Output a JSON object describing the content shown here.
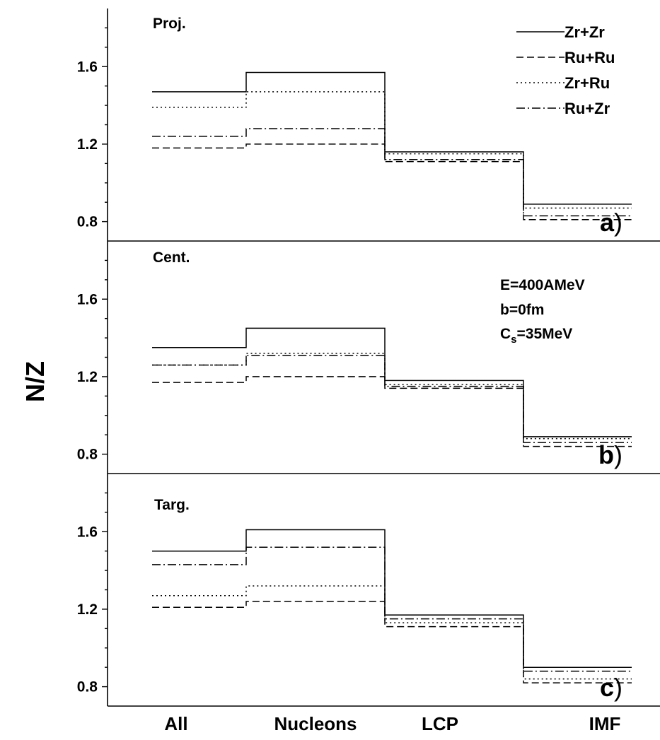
{
  "figure": {
    "ylabel": "N/Z",
    "categories": [
      "All",
      "Nucleons",
      "LCP",
      "IMF"
    ],
    "legend": [
      "Zr+Zr",
      "Ru+Ru",
      "Zr+Ru",
      "Ru+Zr"
    ],
    "annotation": {
      "line1": "E=400AMeV",
      "line2": "b=0fm",
      "line3_main": "C",
      "line3_sub": "s",
      "line3_rest": "=35MeV"
    }
  },
  "chart_data": [
    {
      "type": "line",
      "panel": "a",
      "title": "Proj.",
      "panel_label": "a",
      "categories": [
        "All",
        "Nucleons",
        "LCP",
        "IMF"
      ],
      "ylabel": "N/Z",
      "yticks": [
        0.8,
        1.2,
        1.6
      ],
      "ylim": [
        0.7,
        1.9
      ],
      "legend_position": "top-right",
      "series": [
        {
          "name": "Zr+Zr",
          "style": "solid",
          "values": [
            1.47,
            1.57,
            1.16,
            0.89
          ]
        },
        {
          "name": "Ru+Ru",
          "style": "dashed",
          "values": [
            1.18,
            1.2,
            1.11,
            0.81
          ]
        },
        {
          "name": "Zr+Ru",
          "style": "dotted",
          "values": [
            1.39,
            1.47,
            1.15,
            0.87
          ]
        },
        {
          "name": "Ru+Zr",
          "style": "dashdot",
          "values": [
            1.24,
            1.28,
            1.12,
            0.83
          ]
        }
      ]
    },
    {
      "type": "line",
      "panel": "b",
      "title": "Cent.",
      "panel_label": "b",
      "categories": [
        "All",
        "Nucleons",
        "LCP",
        "IMF"
      ],
      "ylabel": "N/Z",
      "yticks": [
        0.8,
        1.2,
        1.6
      ],
      "ylim": [
        0.7,
        1.9
      ],
      "series": [
        {
          "name": "Zr+Zr",
          "style": "solid",
          "values": [
            1.35,
            1.45,
            1.18,
            0.89
          ]
        },
        {
          "name": "Ru+Ru",
          "style": "dashed",
          "values": [
            1.17,
            1.2,
            1.14,
            0.84
          ]
        },
        {
          "name": "Zr+Ru",
          "style": "dotted",
          "values": [
            1.26,
            1.32,
            1.16,
            0.88
          ]
        },
        {
          "name": "Ru+Zr",
          "style": "dashdot",
          "values": [
            1.26,
            1.31,
            1.15,
            0.86
          ]
        }
      ]
    },
    {
      "type": "line",
      "panel": "c",
      "title": "Targ.",
      "panel_label": "c",
      "categories": [
        "All",
        "Nucleons",
        "LCP",
        "IMF"
      ],
      "xlabel": "",
      "ylabel": "N/Z",
      "yticks": [
        0.8,
        1.2,
        1.6
      ],
      "ylim": [
        0.7,
        1.9
      ],
      "series": [
        {
          "name": "Zr+Zr",
          "style": "solid",
          "values": [
            1.5,
            1.61,
            1.17,
            0.9
          ]
        },
        {
          "name": "Ru+Ru",
          "style": "dashed",
          "values": [
            1.21,
            1.24,
            1.11,
            0.82
          ]
        },
        {
          "name": "Zr+Ru",
          "style": "dotted",
          "values": [
            1.27,
            1.32,
            1.13,
            0.84
          ]
        },
        {
          "name": "Ru+Zr",
          "style": "dashdot",
          "values": [
            1.43,
            1.52,
            1.15,
            0.88
          ]
        }
      ]
    }
  ]
}
